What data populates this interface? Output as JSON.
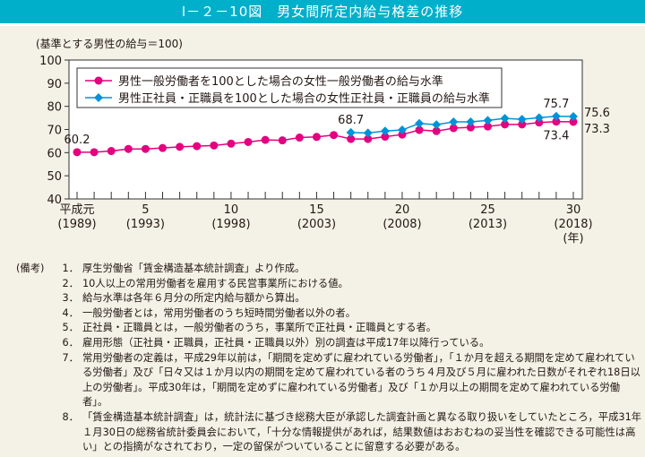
{
  "title": "Ⅰ－２－10図　男女間所定内給与格差の推移",
  "unit_label": "(基準とする男性の給与＝100)",
  "chart_data": {
    "type": "line",
    "title": "Ⅰ－２－10図　男女間所定内給与格差の推移",
    "ylabel": "(基準とする男性の給与＝100)",
    "xlabel": "(年)",
    "ylim": [
      40,
      100
    ],
    "yticks": [
      40,
      50,
      60,
      70,
      80,
      90,
      100
    ],
    "x": [
      1989,
      1990,
      1991,
      1992,
      1993,
      1994,
      1995,
      1996,
      1997,
      1998,
      1999,
      2000,
      2001,
      2002,
      2003,
      2004,
      2005,
      2006,
      2007,
      2008,
      2009,
      2010,
      2011,
      2012,
      2013,
      2014,
      2015,
      2016,
      2017,
      2018
    ],
    "xtick_labels": [
      {
        "year": 1989,
        "line1": "平成元",
        "line2": "(1989)"
      },
      {
        "year": 1993,
        "line1": "5",
        "line2": "(1993)"
      },
      {
        "year": 1998,
        "line1": "10",
        "line2": "(1998)"
      },
      {
        "year": 2003,
        "line1": "15",
        "line2": "(2003)"
      },
      {
        "year": 2008,
        "line1": "20",
        "line2": "(2008)"
      },
      {
        "year": 2013,
        "line1": "25",
        "line2": "(2013)"
      },
      {
        "year": 2018,
        "line1": "30",
        "line2": "(2018)"
      }
    ],
    "legend_position": "top-left",
    "grid": false,
    "series": [
      {
        "name": "男性一般労働者を100とした場合の女性一般労働者の給与水準",
        "color": "#e4007f",
        "marker": "circle",
        "values": [
          60.2,
          60.2,
          60.7,
          61.6,
          61.6,
          62.0,
          62.5,
          62.8,
          63.1,
          63.9,
          64.6,
          65.5,
          65.3,
          66.5,
          66.8,
          67.6,
          65.9,
          65.9,
          66.9,
          67.8,
          69.8,
          69.3,
          70.6,
          70.9,
          71.3,
          72.2,
          72.2,
          73.0,
          73.4,
          73.3
        ]
      },
      {
        "name": "男性正社員・正職員を100とした場合の女性正社員・正職員の給与水準",
        "color": "#0092d8",
        "marker": "diamond",
        "values": [
          null,
          null,
          null,
          null,
          null,
          null,
          null,
          null,
          null,
          null,
          null,
          null,
          null,
          null,
          null,
          null,
          68.7,
          68.5,
          69.3,
          69.8,
          72.6,
          72.1,
          73.3,
          73.3,
          73.9,
          74.8,
          74.4,
          75.1,
          75.7,
          75.6
        ]
      }
    ],
    "annotations": [
      {
        "series": 0,
        "year": 1989,
        "text": "60.2",
        "pos": "above"
      },
      {
        "series": 1,
        "year": 2005,
        "text": "68.7",
        "pos": "above"
      },
      {
        "series": 1,
        "year": 2017,
        "text": "75.7",
        "pos": "above"
      },
      {
        "series": 0,
        "year": 2017,
        "text": "73.4",
        "pos": "below"
      },
      {
        "series": 1,
        "year": 2018,
        "text": "75.6",
        "pos": "right-up"
      },
      {
        "series": 0,
        "year": 2018,
        "text": "73.3",
        "pos": "right-down"
      }
    ]
  },
  "notes": {
    "label": "(備考)",
    "items": [
      {
        "num": "1．",
        "text": "厚生労働省「賃金構造基本統計調査」より作成。"
      },
      {
        "num": "2．",
        "text": "10人以上の常用労働者を雇用する民営事業所における値。"
      },
      {
        "num": "3．",
        "text": "給与水準は各年６月分の所定内給与額から算出。"
      },
      {
        "num": "4．",
        "text": "一般労働者とは，常用労働者のうち短時間労働者以外の者。"
      },
      {
        "num": "5．",
        "text": "正社員・正職員とは，一般労働者のうち，事業所で正社員・正職員とする者。"
      },
      {
        "num": "6．",
        "text": "雇用形態（正社員・正職員，正社員・正職員以外）別の調査は平成17年以降行っている。"
      },
      {
        "num": "7．",
        "text": "常用労働者の定義は，平成29年以前は，「期間を定めずに雇われている労働者」，「１か月を超える期間を定めて雇われている労働者」及び「日々又は１か月以内の期間を定めて雇われている者のうち４月及び５月に雇われた日数がそれぞれ18日以上の労働者」。平成30年は，「期間を定めずに雇われている労働者」及び「１か月以上の期間を定めて雇われている労働者」。"
      },
      {
        "num": "8．",
        "text": "「賃金構造基本統計調査」は，統計法に基づき総務大臣が承認した調査計画と異なる取り扱いをしていたところ，平成31年１月30日の総務省統計委員会において，「十分な情報提供があれば，結果数値はおおむねの妥当性を確認できる可能性は高い」との指摘がなされており，一定の留保がついていることに留意する必要がある。"
      }
    ]
  }
}
